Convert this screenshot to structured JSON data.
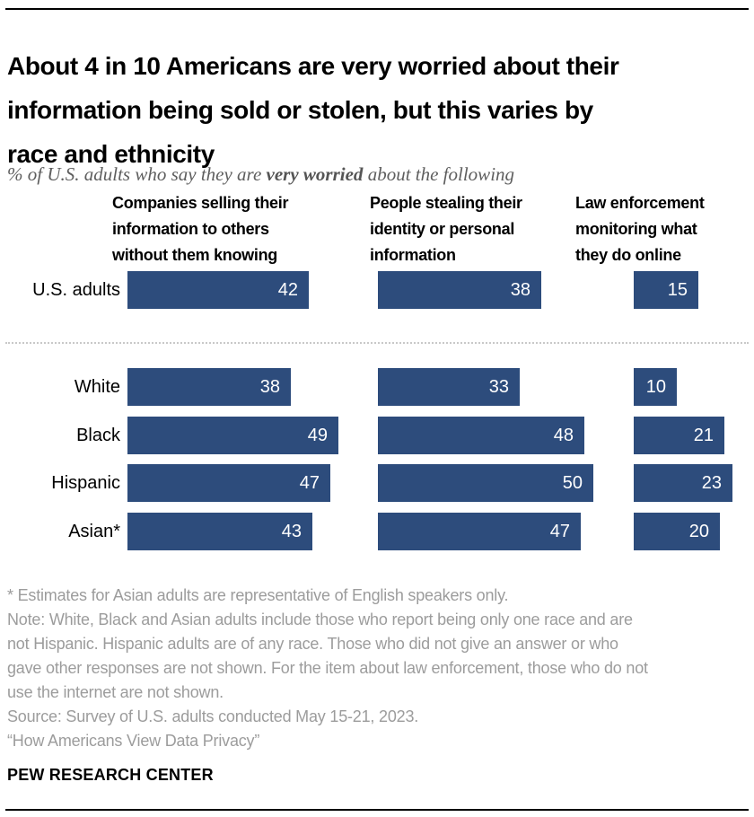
{
  "chart_data": {
    "type": "bar",
    "title": "About 4 in 10 Americans are very worried about their\ninformation being sold or stolen, but this varies by\nrace and ethnicity",
    "subtitle_prefix": "% of U.S. adults who say they are ",
    "subtitle_bold": "very worried",
    "subtitle_suffix": " about the following",
    "unit": "%",
    "bar_color": "#2D4C7C",
    "value_label_color": "#FFFFFF",
    "legend_position": "none",
    "grid": false,
    "xlim": [
      0,
      55
    ],
    "columns": [
      {
        "header": "Companies selling their\ninformation to others\nwithout them knowing"
      },
      {
        "header": "People stealing their\nidentity or personal\ninformation"
      },
      {
        "header": "Law enforcement\nmonitoring what\nthey do online"
      }
    ],
    "groups_overall": [
      {
        "label": "U.S. adults",
        "values": [
          42,
          38,
          15
        ]
      }
    ],
    "groups_by_race": [
      {
        "label": "White",
        "values": [
          38,
          33,
          10
        ]
      },
      {
        "label": "Black",
        "values": [
          49,
          48,
          21
        ]
      },
      {
        "label": "Hispanic",
        "values": [
          47,
          50,
          23
        ]
      },
      {
        "label": "Asian*",
        "values": [
          43,
          47,
          20
        ]
      }
    ]
  },
  "footer": {
    "asterisk_note": "* Estimates for Asian adults are representative of English speakers only.",
    "note": "Note: White, Black and Asian adults include those who report being only one race and are\nnot Hispanic. Hispanic adults are of any race. Those who did not give an answer or who\ngave other responses are not shown. For the item about law enforcement, those who do not\nuse the internet are not shown.",
    "source": "Source: Survey of U.S. adults conducted May 15-21, 2023.",
    "quote": "“How Americans View Data Privacy”",
    "brand": "PEW RESEARCH CENTER"
  }
}
